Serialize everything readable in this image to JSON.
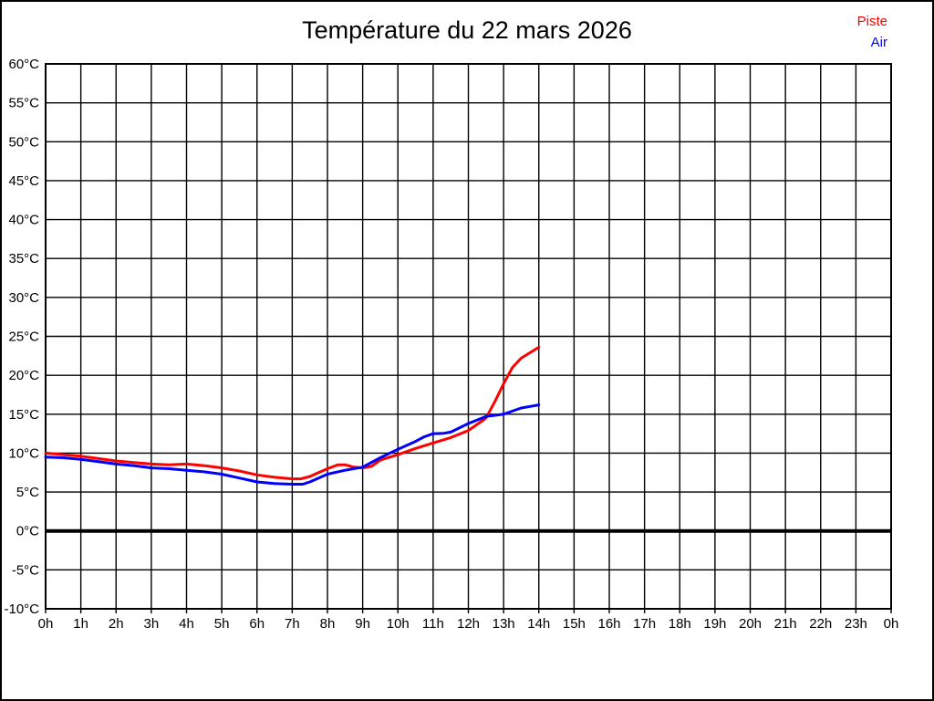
{
  "title": "Température du 22 mars 2026",
  "legend": {
    "piste": {
      "label": "Piste",
      "color": "#ff0000"
    },
    "air": {
      "label": "Air",
      "color": "#0000ff"
    }
  },
  "colors": {
    "grid": "#000000",
    "frame": "#000000",
    "zero_line": "#000000",
    "background": "#ffffff",
    "piste_line": "#ff0000",
    "air_line": "#0000ff"
  },
  "chart_data": {
    "type": "line",
    "title": "Température du 22 mars 2026",
    "xlabel": "",
    "ylabel": "",
    "xlim": [
      0,
      24
    ],
    "ylim": [
      -10,
      60
    ],
    "y_tick_step": 5,
    "grid": true,
    "zero_line_bold": true,
    "legend_position": "top-right",
    "x_tick_labels": [
      "0h",
      "1h",
      "2h",
      "3h",
      "4h",
      "5h",
      "6h",
      "7h",
      "8h",
      "9h",
      "10h",
      "11h",
      "12h",
      "13h",
      "14h",
      "15h",
      "16h",
      "17h",
      "18h",
      "19h",
      "20h",
      "21h",
      "22h",
      "23h",
      "0h"
    ],
    "y_tick_labels": [
      "60°C",
      "55°C",
      "50°C",
      "45°C",
      "40°C",
      "35°C",
      "30°C",
      "25°C",
      "20°C",
      "15°C",
      "10°C",
      "5°C",
      "0°C",
      "-5°C",
      "-10°C"
    ],
    "series": [
      {
        "name": "Piste",
        "color": "#ff0000",
        "points": [
          [
            0,
            10.0
          ],
          [
            0.5,
            9.8
          ],
          [
            1,
            9.6
          ],
          [
            1.5,
            9.3
          ],
          [
            2,
            9.0
          ],
          [
            2.5,
            8.8
          ],
          [
            3,
            8.6
          ],
          [
            3.5,
            8.5
          ],
          [
            4,
            8.6
          ],
          [
            4.5,
            8.4
          ],
          [
            5,
            8.1
          ],
          [
            5.5,
            7.7
          ],
          [
            6,
            7.2
          ],
          [
            6.5,
            6.9
          ],
          [
            7,
            6.7
          ],
          [
            7.25,
            6.7
          ],
          [
            7.5,
            7.0
          ],
          [
            8,
            8.0
          ],
          [
            8.3,
            8.5
          ],
          [
            8.5,
            8.5
          ],
          [
            8.75,
            8.2
          ],
          [
            9,
            8.1
          ],
          [
            9.25,
            8.3
          ],
          [
            9.5,
            9.1
          ],
          [
            10,
            9.8
          ],
          [
            10.5,
            10.6
          ],
          [
            11,
            11.3
          ],
          [
            11.5,
            12.0
          ],
          [
            12,
            12.9
          ],
          [
            12.25,
            13.7
          ],
          [
            12.5,
            14.5
          ],
          [
            12.75,
            16.6
          ],
          [
            13,
            18.9
          ],
          [
            13.25,
            21.0
          ],
          [
            13.5,
            22.2
          ],
          [
            13.75,
            22.9
          ],
          [
            14,
            23.6
          ]
        ]
      },
      {
        "name": "Air",
        "color": "#0000ff",
        "points": [
          [
            0,
            9.5
          ],
          [
            0.5,
            9.4
          ],
          [
            1,
            9.2
          ],
          [
            1.5,
            8.9
          ],
          [
            2,
            8.6
          ],
          [
            2.5,
            8.4
          ],
          [
            3,
            8.1
          ],
          [
            3.5,
            8.0
          ],
          [
            4,
            7.8
          ],
          [
            4.5,
            7.6
          ],
          [
            5,
            7.3
          ],
          [
            5.5,
            6.8
          ],
          [
            6,
            6.3
          ],
          [
            6.5,
            6.1
          ],
          [
            7,
            6.0
          ],
          [
            7.3,
            6.0
          ],
          [
            7.5,
            6.3
          ],
          [
            8,
            7.3
          ],
          [
            8.5,
            7.8
          ],
          [
            9,
            8.2
          ],
          [
            9.5,
            9.4
          ],
          [
            10,
            10.5
          ],
          [
            10.5,
            11.5
          ],
          [
            10.75,
            12.1
          ],
          [
            11,
            12.5
          ],
          [
            11.3,
            12.55
          ],
          [
            11.5,
            12.7
          ],
          [
            12,
            13.8
          ],
          [
            12.5,
            14.7
          ],
          [
            13,
            15.0
          ],
          [
            13.5,
            15.8
          ],
          [
            13.75,
            16.0
          ],
          [
            14,
            16.2
          ]
        ]
      }
    ]
  }
}
